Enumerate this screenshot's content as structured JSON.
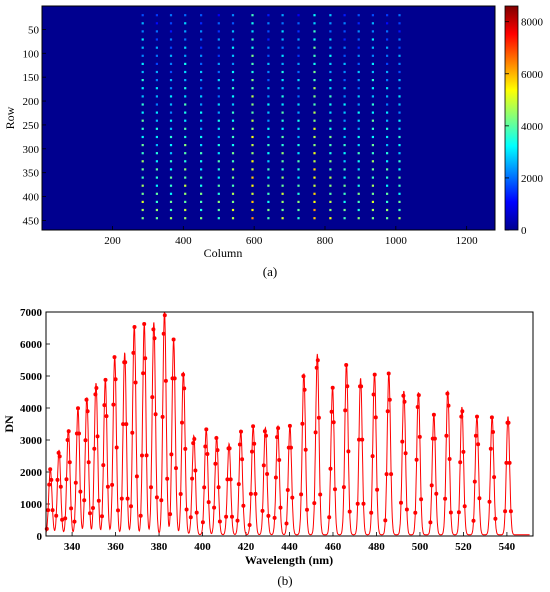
{
  "panel_a": {
    "caption": "(a)",
    "chart_data": {
      "type": "heatmap",
      "xlabel": "Column",
      "ylabel": "Row",
      "xlim": [
        1,
        1280
      ],
      "ylim": [
        1,
        470
      ],
      "y_reversed": true,
      "xticks": [
        200,
        400,
        600,
        800,
        1000,
        1200
      ],
      "yticks": [
        50,
        100,
        150,
        200,
        250,
        300,
        350,
        400,
        450
      ],
      "colorbar": {
        "min": 0,
        "max": 8000,
        "ticks": [
          0,
          2000,
          4000,
          6000,
          8000
        ],
        "colormap": "jet"
      },
      "spot_columns": [
        285,
        325,
        365,
        405,
        450,
        500,
        540,
        595,
        640,
        680,
        725,
        770,
        815,
        855,
        895,
        935,
        975,
        1010
      ],
      "spot_row_start": 20,
      "spot_row_end": 455,
      "spot_row_step": 17,
      "background_color": "#00008f"
    }
  },
  "panel_b": {
    "caption": "(b)",
    "chart_data": {
      "type": "line",
      "xlabel": "Wavelength (nm)",
      "ylabel": "DN",
      "xlim": [
        328,
        552
      ],
      "ylim": [
        0,
        7000
      ],
      "xticks": [
        340,
        360,
        380,
        400,
        420,
        440,
        460,
        480,
        500,
        520,
        540
      ],
      "yticks": [
        0,
        1000,
        2000,
        3000,
        4000,
        5000,
        6000,
        7000
      ],
      "color": "#ff0000",
      "marker": "circle",
      "peaks": [
        {
          "x": 330.0,
          "y": 2050
        },
        {
          "x": 334.0,
          "y": 2650
        },
        {
          "x": 338.3,
          "y": 3300
        },
        {
          "x": 342.7,
          "y": 3950
        },
        {
          "x": 346.8,
          "y": 4300
        },
        {
          "x": 351.0,
          "y": 4750
        },
        {
          "x": 355.3,
          "y": 4850
        },
        {
          "x": 359.6,
          "y": 5600
        },
        {
          "x": 364.2,
          "y": 5700
        },
        {
          "x": 368.6,
          "y": 6550
        },
        {
          "x": 373.2,
          "y": 6600
        },
        {
          "x": 377.6,
          "y": 6650
        },
        {
          "x": 382.5,
          "y": 7000
        },
        {
          "x": 386.7,
          "y": 6100
        },
        {
          "x": 391.2,
          "y": 5100
        },
        {
          "x": 396.0,
          "y": 3100
        },
        {
          "x": 401.7,
          "y": 3300
        },
        {
          "x": 406.5,
          "y": 3050
        },
        {
          "x": 412.2,
          "y": 2850
        },
        {
          "x": 417.6,
          "y": 3250
        },
        {
          "x": 423.3,
          "y": 3400
        },
        {
          "x": 428.9,
          "y": 3350
        },
        {
          "x": 434.6,
          "y": 3400
        },
        {
          "x": 440.2,
          "y": 3400
        },
        {
          "x": 446.6,
          "y": 5050
        },
        {
          "x": 452.8,
          "y": 5650
        },
        {
          "x": 459.8,
          "y": 4600
        },
        {
          "x": 466.2,
          "y": 5350
        },
        {
          "x": 472.7,
          "y": 4900
        },
        {
          "x": 479.1,
          "y": 5050
        },
        {
          "x": 485.7,
          "y": 5050
        },
        {
          "x": 492.6,
          "y": 4500
        },
        {
          "x": 499.3,
          "y": 4450
        },
        {
          "x": 506.4,
          "y": 3750
        },
        {
          "x": 512.8,
          "y": 4500
        },
        {
          "x": 519.3,
          "y": 4000
        },
        {
          "x": 526.2,
          "y": 3700
        },
        {
          "x": 533.2,
          "y": 3700
        },
        {
          "x": 540.5,
          "y": 3700
        }
      ]
    }
  }
}
